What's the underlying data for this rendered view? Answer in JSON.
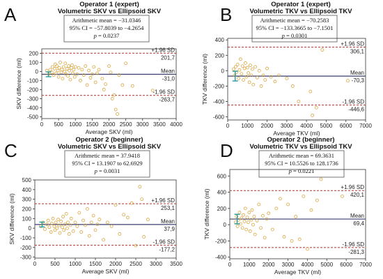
{
  "chart_data": [
    {
      "type": "scatter",
      "letter": "A",
      "title_line1": "Operator 1 (expert)",
      "title_line2": "Volumetric SKV vs Ellipsoid SKV",
      "stats": {
        "mean": "Arithmetic mean = −31.0346",
        "ci": "95% CI = −57.8039 to −4.2654",
        "p_label": "p",
        "p_value": " = 0.0237"
      },
      "xlabel": "Average SKV (ml)",
      "ylabel": "SKV difference (ml)",
      "xlim": [
        0,
        4000
      ],
      "ylim": [
        -520,
        250
      ],
      "xticks": [
        0,
        500,
        1000,
        1500,
        2000,
        2500,
        3000,
        3500,
        4000
      ],
      "yticks": [
        -500,
        -400,
        -300,
        -200,
        -100,
        0,
        100,
        200
      ],
      "mean": -31.0,
      "upper": 201.7,
      "lower": -263.7,
      "upper_label": "+1.96 SD",
      "upper_value": "201,7",
      "mean_label": "Mean",
      "mean_value": "-31,0",
      "lower_label": "-1.96 SD",
      "lower_value": "-263,7",
      "ci_bar": {
        "x": 200,
        "low": -57.8,
        "high": -4.3
      },
      "points": [
        [
          150,
          10
        ],
        [
          200,
          -30
        ],
        [
          250,
          20
        ],
        [
          300,
          -10
        ],
        [
          320,
          50
        ],
        [
          350,
          -40
        ],
        [
          380,
          30
        ],
        [
          400,
          80
        ],
        [
          420,
          -20
        ],
        [
          450,
          60
        ],
        [
          480,
          10
        ],
        [
          500,
          -60
        ],
        [
          520,
          40
        ],
        [
          550,
          100
        ],
        [
          580,
          -10
        ],
        [
          600,
          20
        ],
        [
          620,
          -80
        ],
        [
          650,
          50
        ],
        [
          680,
          0
        ],
        [
          700,
          90
        ],
        [
          720,
          -30
        ],
        [
          750,
          30
        ],
        [
          780,
          -50
        ],
        [
          800,
          60
        ],
        [
          820,
          10
        ],
        [
          850,
          -90
        ],
        [
          880,
          40
        ],
        [
          900,
          70
        ],
        [
          920,
          -20
        ],
        [
          950,
          20
        ],
        [
          980,
          -60
        ],
        [
          1000,
          50
        ],
        [
          1050,
          -30
        ],
        [
          1100,
          40
        ],
        [
          1150,
          -100
        ],
        [
          1200,
          20
        ],
        [
          1250,
          -40
        ],
        [
          1300,
          60
        ],
        [
          1350,
          -150
        ],
        [
          1400,
          10
        ],
        [
          1450,
          -70
        ],
        [
          1500,
          -30
        ],
        [
          1550,
          50
        ],
        [
          1600,
          -120
        ],
        [
          1650,
          -20
        ],
        [
          1700,
          20
        ],
        [
          1800,
          -80
        ],
        [
          1850,
          -200
        ],
        [
          1900,
          -140
        ],
        [
          2000,
          60
        ],
        [
          2050,
          -10
        ],
        [
          2100,
          -300
        ],
        [
          2150,
          -260
        ],
        [
          2200,
          -420
        ],
        [
          2250,
          -470
        ],
        [
          2300,
          -40
        ],
        [
          2400,
          -150
        ],
        [
          2500,
          90
        ],
        [
          2700,
          -160
        ],
        [
          3300,
          -210
        ]
      ]
    },
    {
      "type": "scatter",
      "letter": "B",
      "title_line1": "Operator 1 (expert)",
      "title_line2": "Volumetric TKV vs Ellipsoid TKV",
      "stats": {
        "mean": "Arithmetic mean = −70.2583",
        "ci": "95% CI = −133.3665 to −7.1501",
        "p_label": "p",
        "p_value": " = 0.0301"
      },
      "xlabel": "Average TKV (ml)",
      "ylabel": "TKV difference (ml)",
      "xlim": [
        0,
        7000
      ],
      "ylim": [
        -640,
        420
      ],
      "xticks": [
        0,
        1000,
        2000,
        3000,
        4000,
        5000,
        6000,
        7000
      ],
      "yticks": [
        -600,
        -400,
        -200,
        0,
        200,
        400
      ],
      "mean": -70.3,
      "upper": 306.1,
      "lower": -446.6,
      "upper_label": "+1.96 SD",
      "upper_value": "306,1",
      "mean_label": "Mean",
      "mean_value": "-70,3",
      "lower_label": "-1.96 SD",
      "lower_value": "-446,6",
      "ci_bar": {
        "x": 380,
        "low": -133.4,
        "high": -7.2
      },
      "points": [
        [
          300,
          20
        ],
        [
          350,
          -60
        ],
        [
          400,
          50
        ],
        [
          450,
          -20
        ],
        [
          500,
          80
        ],
        [
          550,
          -100
        ],
        [
          600,
          10
        ],
        [
          650,
          150
        ],
        [
          700,
          -40
        ],
        [
          750,
          60
        ],
        [
          800,
          -120
        ],
        [
          850,
          30
        ],
        [
          900,
          100
        ],
        [
          950,
          -80
        ],
        [
          1000,
          40
        ],
        [
          1050,
          -30
        ],
        [
          1100,
          -150
        ],
        [
          1150,
          70
        ],
        [
          1200,
          -60
        ],
        [
          1250,
          20
        ],
        [
          1300,
          -180
        ],
        [
          1400,
          50
        ],
        [
          1500,
          -90
        ],
        [
          1600,
          0
        ],
        [
          1700,
          -200
        ],
        [
          1800,
          -60
        ],
        [
          1900,
          -120
        ],
        [
          2000,
          30
        ],
        [
          2200,
          -80
        ],
        [
          2400,
          -140
        ],
        [
          2600,
          -60
        ],
        [
          3000,
          -100
        ],
        [
          3300,
          -200
        ],
        [
          3600,
          -400
        ],
        [
          4200,
          -270
        ],
        [
          4300,
          -580
        ],
        [
          4500,
          -480
        ],
        [
          4800,
          270
        ],
        [
          6100,
          -130
        ]
      ]
    },
    {
      "type": "scatter",
      "letter": "C",
      "title_line1": "Operator 2 (beginner)",
      "title_line2": "Volumetric SKV vs Ellipsoid SKV",
      "stats": {
        "mean": "Arithmetic mean = 37.9418",
        "ci": "95% CI = 13.1907 to 62.6929",
        "p_label": "p",
        "p_value": " = 0.0031"
      },
      "xlabel": "Average SKV (ml)",
      "ylabel": "SKV difference (ml)",
      "xlim": [
        0,
        3500
      ],
      "ylim": [
        -310,
        500
      ],
      "xticks": [
        0,
        500,
        1000,
        1500,
        2000,
        2500,
        3000,
        3500
      ],
      "yticks": [
        -300,
        -200,
        -100,
        0,
        100,
        200,
        300,
        400,
        500
      ],
      "mean": 37.9,
      "upper": 253.1,
      "lower": -177.2,
      "upper_label": "+1.96 SD",
      "upper_value": "253,1",
      "mean_label": "Mean",
      "mean_value": "37,9",
      "lower_label": "-1.96 SD",
      "lower_value": "-177,2",
      "ci_bar": {
        "x": 180,
        "low": 13.2,
        "high": 62.7
      },
      "points": [
        [
          150,
          20
        ],
        [
          200,
          60
        ],
        [
          250,
          -10
        ],
        [
          300,
          40
        ],
        [
          330,
          80
        ],
        [
          360,
          10
        ],
        [
          400,
          -40
        ],
        [
          420,
          50
        ],
        [
          450,
          100
        ],
        [
          480,
          20
        ],
        [
          500,
          -20
        ],
        [
          520,
          60
        ],
        [
          550,
          0
        ],
        [
          580,
          90
        ],
        [
          600,
          30
        ],
        [
          620,
          -50
        ],
        [
          650,
          70
        ],
        [
          680,
          10
        ],
        [
          700,
          120
        ],
        [
          720,
          -20
        ],
        [
          750,
          40
        ],
        [
          780,
          150
        ],
        [
          800,
          0
        ],
        [
          820,
          60
        ],
        [
          850,
          -60
        ],
        [
          880,
          30
        ],
        [
          900,
          100
        ],
        [
          950,
          -30
        ],
        [
          1000,
          60
        ],
        [
          1050,
          20
        ],
        [
          1100,
          160
        ],
        [
          1150,
          -40
        ],
        [
          1200,
          80
        ],
        [
          1250,
          30
        ],
        [
          1300,
          200
        ],
        [
          1350,
          -80
        ],
        [
          1400,
          60
        ],
        [
          1450,
          130
        ],
        [
          1500,
          -20
        ],
        [
          1550,
          40
        ],
        [
          1600,
          90
        ],
        [
          1700,
          -120
        ],
        [
          1800,
          60
        ],
        [
          1900,
          20
        ],
        [
          2000,
          240
        ],
        [
          2100,
          -60
        ],
        [
          2200,
          140
        ],
        [
          2300,
          110
        ],
        [
          2400,
          260
        ],
        [
          2500,
          -180
        ],
        [
          2600,
          430
        ],
        [
          2650,
          300
        ],
        [
          2700,
          -90
        ],
        [
          2800,
          90
        ]
      ]
    },
    {
      "type": "scatter",
      "letter": "D",
      "title_line1": "Operator 2 (beginner)",
      "title_line2": "Volumetric TKV vs Ellipsoid TKV",
      "stats": {
        "mean": "Arithmetic mean = 69.3631",
        "ci": "95% CI = 10.5526 to 128.1736",
        "p_label": "p",
        "p_value": " = 0.0221"
      },
      "xlabel": "Average TKV (ml)",
      "ylabel": "TKV difference (ml)",
      "xlim": [
        0,
        7000
      ],
      "ylim": [
        -420,
        680
      ],
      "xticks": [
        0,
        1000,
        2000,
        3000,
        4000,
        5000,
        6000,
        7000
      ],
      "yticks": [
        -400,
        -200,
        0,
        200,
        400,
        600
      ],
      "mean": 69.4,
      "upper": 420.1,
      "lower": -281.3,
      "upper_label": "+1.96 SD",
      "upper_value": "420,1",
      "mean_label": "Mean",
      "mean_value": "69,4",
      "lower_label": "-1.96 SD",
      "lower_value": "-281,3",
      "ci_bar": {
        "x": 380,
        "low": 10.6,
        "high": 128.2
      },
      "points": [
        [
          300,
          30
        ],
        [
          350,
          100
        ],
        [
          400,
          -20
        ],
        [
          450,
          60
        ],
        [
          500,
          150
        ],
        [
          550,
          10
        ],
        [
          600,
          80
        ],
        [
          650,
          -40
        ],
        [
          700,
          120
        ],
        [
          750,
          40
        ],
        [
          800,
          200
        ],
        [
          850,
          -60
        ],
        [
          900,
          90
        ],
        [
          950,
          30
        ],
        [
          1000,
          150
        ],
        [
          1050,
          -80
        ],
        [
          1100,
          60
        ],
        [
          1150,
          180
        ],
        [
          1200,
          0
        ],
        [
          1250,
          100
        ],
        [
          1300,
          -120
        ],
        [
          1400,
          50
        ],
        [
          1500,
          250
        ],
        [
          1600,
          -40
        ],
        [
          1700,
          110
        ],
        [
          1800,
          -160
        ],
        [
          1900,
          70
        ],
        [
          2000,
          140
        ],
        [
          2200,
          -60
        ],
        [
          2400,
          200
        ],
        [
          2600,
          320
        ],
        [
          2800,
          -150
        ],
        [
          3000,
          250
        ],
        [
          3200,
          -200
        ],
        [
          3400,
          100
        ],
        [
          3600,
          -180
        ],
        [
          3800,
          350
        ],
        [
          4000,
          -300
        ],
        [
          4200,
          180
        ],
        [
          4500,
          300
        ],
        [
          4700,
          560
        ],
        [
          5800,
          350
        ]
      ]
    }
  ]
}
